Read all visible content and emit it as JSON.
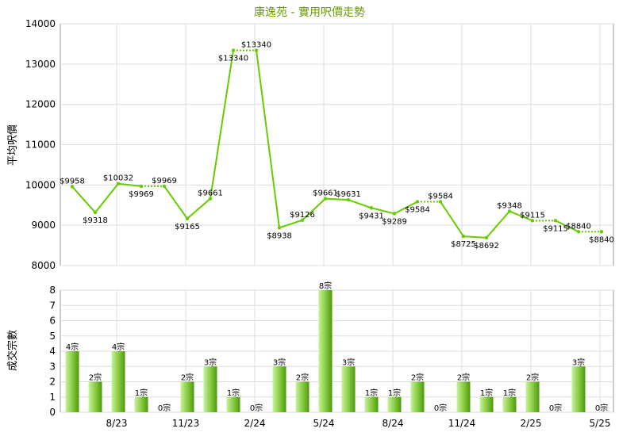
{
  "title": "康逸苑 - 實用呎價走勢",
  "colors": {
    "line": "#66cc00",
    "title": "#669900",
    "bar_light": "#b8e986",
    "bar_dark": "#4e9a06",
    "grid": "#dddddd",
    "axis": "#999999"
  },
  "x_tick_labels": [
    {
      "index": 2,
      "label": "8/23"
    },
    {
      "index": 5,
      "label": "11/23"
    },
    {
      "index": 8,
      "label": "2/24"
    },
    {
      "index": 11,
      "label": "5/24"
    },
    {
      "index": 14,
      "label": "8/24"
    },
    {
      "index": 17,
      "label": "11/24"
    },
    {
      "index": 20,
      "label": "2/25"
    },
    {
      "index": 23,
      "label": "5/25"
    }
  ],
  "chart_data": [
    {
      "type": "line",
      "title": "康逸苑 - 實用呎價走勢",
      "ylabel": "平均呎價",
      "ylim": [
        8000,
        14000
      ],
      "yticks": [
        8000,
        9000,
        10000,
        11000,
        12000,
        13000,
        14000
      ],
      "grid": true,
      "series": [
        {
          "values": [
            9958,
            9318,
            10032,
            9969,
            9969,
            9165,
            9661,
            13340,
            13340,
            8938,
            9126,
            9661,
            9631,
            9431,
            9289,
            9584,
            9584,
            8725,
            8692,
            9348,
            9115,
            9115,
            8840,
            8840
          ],
          "labels": [
            "$9958",
            "$9318",
            "$10032",
            "$9969",
            "$9969",
            "$9165",
            "$9661",
            "$13340",
            "$13340",
            "$8938",
            "$9126",
            "$9661",
            "$9631",
            "$9431",
            "$9289",
            "$9584",
            "$9584",
            "$8725",
            "$8692",
            "$9348",
            "$9115",
            "$9115",
            "$8840",
            "$8840"
          ]
        }
      ]
    },
    {
      "type": "bar",
      "ylabel": "成交宗數",
      "ylim": [
        0,
        8
      ],
      "yticks": [
        0,
        1,
        2,
        3,
        4,
        5,
        6,
        7,
        8
      ],
      "grid": true,
      "values": [
        4,
        2,
        4,
        1,
        0,
        2,
        3,
        1,
        0,
        3,
        2,
        8,
        3,
        1,
        1,
        2,
        0,
        2,
        1,
        1,
        2,
        0,
        3,
        0
      ],
      "labels": [
        "4宗",
        "2宗",
        "4宗",
        "1宗",
        "0宗",
        "2宗",
        "3宗",
        "1宗",
        "0宗",
        "3宗",
        "2宗",
        "8宗",
        "3宗",
        "1宗",
        "1宗",
        "2宗",
        "0宗",
        "2宗",
        "1宗",
        "1宗",
        "2宗",
        "0宗",
        "3宗",
        "0宗"
      ]
    }
  ]
}
